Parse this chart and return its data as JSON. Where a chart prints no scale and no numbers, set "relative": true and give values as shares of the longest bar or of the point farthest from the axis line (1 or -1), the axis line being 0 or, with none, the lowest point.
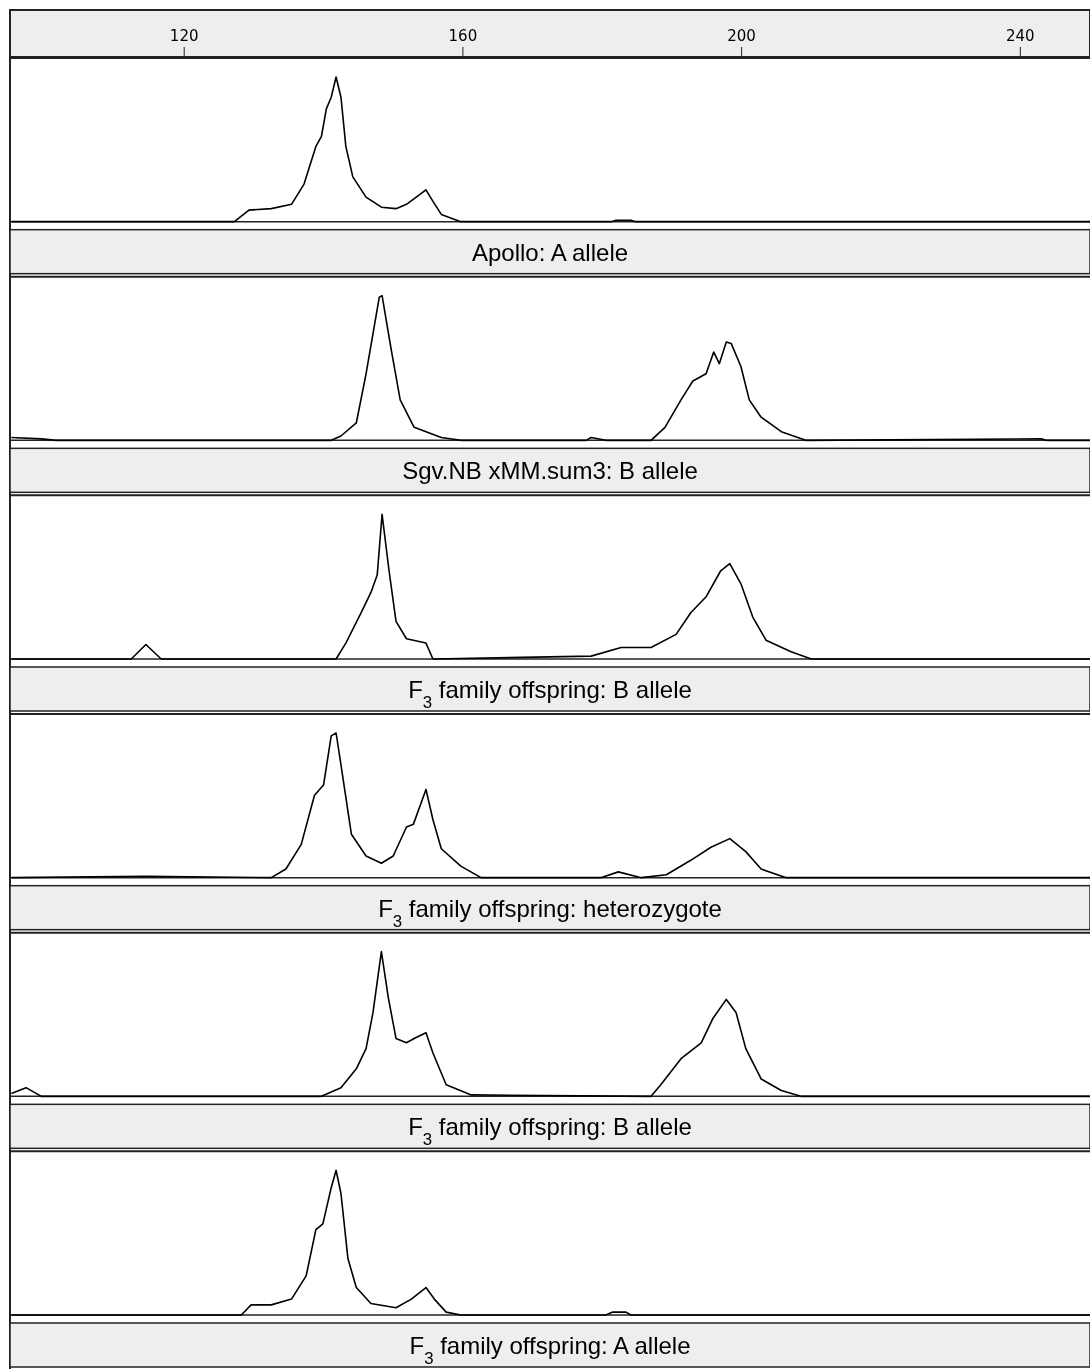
{
  "chart_data": [
    {
      "type": "line",
      "relative": true,
      "title": "Apollo: A allele",
      "xlim": [
        95,
        250
      ],
      "xticks": [
        120,
        160,
        200,
        240
      ],
      "tick_labels": "x",
      "color": "#000000",
      "x": [
        95.2,
        127.2,
        129.3,
        132.5,
        135.4,
        137.2,
        138.9,
        139.7,
        140.4,
        141.1,
        141.8,
        142.5,
        143.2,
        144.2,
        146.1,
        148.3,
        150.4,
        151.9,
        153.3,
        154.7,
        155.7,
        156.9,
        159.7,
        181.3,
        182.0,
        184.1,
        184.8,
        250
      ],
      "values": [
        0,
        0,
        0.08,
        0.09,
        0.12,
        0.26,
        0.52,
        0.59,
        0.78,
        0.86,
        1,
        0.86,
        0.52,
        0.31,
        0.17,
        0.1,
        0.09,
        0.12,
        0.17,
        0.22,
        0.14,
        0.05,
        0,
        0,
        0.01,
        0.01,
        0,
        0
      ]
    },
    {
      "type": "line",
      "relative": true,
      "title": "Sgv.NB xMM.sum3: B allele",
      "xlim": [
        95,
        250
      ],
      "tick_labels": false,
      "color": "#000000",
      "x": [
        95.2,
        99.5,
        101.6,
        141.1,
        142.5,
        144.7,
        146.1,
        148.0,
        148.4,
        149.7,
        151.0,
        153.0,
        156.9,
        159.7,
        177.7,
        178.4,
        180.5,
        187.0,
        189.0,
        191.3,
        193.0,
        194.9,
        196.0,
        196.8,
        197.8,
        198.5,
        199.9,
        201.1,
        202.8,
        205.7,
        209.2,
        243.0,
        243.7,
        250
      ],
      "values": [
        0.02,
        0.01,
        0,
        0,
        0.03,
        0.12,
        0.46,
        0.99,
        1,
        0.63,
        0.28,
        0.09,
        0.02,
        0,
        0,
        0.02,
        0,
        0,
        0.09,
        0.28,
        0.41,
        0.46,
        0.61,
        0.53,
        0.68,
        0.67,
        0.51,
        0.28,
        0.16,
        0.06,
        0,
        0.01,
        0,
        0
      ]
    },
    {
      "type": "line",
      "relative": true,
      "title": "F$_{3}$ family offspring: B allele",
      "xlim": [
        95,
        250
      ],
      "tick_labels": false,
      "color": "#000000",
      "x": [
        95.2,
        112.4,
        114.5,
        116.7,
        141.8,
        143.2,
        145.4,
        146.8,
        147.7,
        148.4,
        149.4,
        150.4,
        151.9,
        154.7,
        155.7,
        178.4,
        182.7,
        187.0,
        190.6,
        192.7,
        194.9,
        197.0,
        198.3,
        199.9,
        201.6,
        203.5,
        207.1,
        210.0,
        250
      ],
      "values": [
        0,
        0,
        0.1,
        0,
        0,
        0.11,
        0.32,
        0.46,
        0.58,
        1,
        0.61,
        0.26,
        0.14,
        0.11,
        0,
        0.02,
        0.08,
        0.08,
        0.17,
        0.32,
        0.43,
        0.61,
        0.66,
        0.52,
        0.29,
        0.13,
        0.05,
        0,
        0
      ]
    },
    {
      "type": "line",
      "relative": true,
      "title": "F$_{3}$ family offspring: heterozygote",
      "xlim": [
        95,
        250
      ],
      "tick_labels": false,
      "color": "#000000",
      "x": [
        95.2,
        114.5,
        132.5,
        134.6,
        136.8,
        138.7,
        140.0,
        141.1,
        141.8,
        142.5,
        144.0,
        146.1,
        148.3,
        150.0,
        151.9,
        152.9,
        154.7,
        155.7,
        156.9,
        159.7,
        162.6,
        179.8,
        182.3,
        185.6,
        189.2,
        192.7,
        195.6,
        198.3,
        200.6,
        202.8,
        206.4,
        250
      ],
      "values": [
        0,
        0.01,
        0,
        0.06,
        0.23,
        0.57,
        0.64,
        0.98,
        1,
        0.78,
        0.3,
        0.15,
        0.1,
        0.15,
        0.35,
        0.37,
        0.61,
        0.4,
        0.2,
        0.08,
        0,
        0,
        0.04,
        0,
        0.02,
        0.12,
        0.21,
        0.27,
        0.18,
        0.06,
        0,
        0
      ]
    },
    {
      "type": "line",
      "relative": true,
      "title": "F$_{3}$ family offspring: B allele",
      "xlim": [
        95,
        250
      ],
      "tick_labels": false,
      "color": "#000000",
      "x": [
        95.2,
        97.3,
        99.5,
        139.7,
        142.5,
        144.7,
        146.1,
        147.1,
        148.3,
        149.3,
        150.4,
        151.9,
        153.0,
        154.7,
        155.7,
        157.6,
        161.2,
        187.0,
        188.4,
        191.3,
        194.2,
        195.9,
        197.8,
        199.2,
        200.6,
        202.8,
        205.7,
        208.5,
        250
      ],
      "values": [
        0.02,
        0.06,
        0,
        0,
        0.06,
        0.19,
        0.33,
        0.58,
        1,
        0.68,
        0.4,
        0.37,
        0.4,
        0.44,
        0.3,
        0.08,
        0.01,
        0,
        0.08,
        0.26,
        0.37,
        0.54,
        0.67,
        0.58,
        0.33,
        0.12,
        0.04,
        0,
        0
      ]
    },
    {
      "type": "line",
      "relative": true,
      "title": "F$_{3}$ family offspring: A allele",
      "xlim": [
        95,
        250
      ],
      "tick_labels": false,
      "color": "#000000",
      "x": [
        95.2,
        128.2,
        129.6,
        132.5,
        135.4,
        137.5,
        138.9,
        139.9,
        141.1,
        141.8,
        142.5,
        143.5,
        144.7,
        146.8,
        150.4,
        152.6,
        154.7,
        155.9,
        157.6,
        159.7,
        180.5,
        181.5,
        183.4,
        184.1,
        250
      ],
      "values": [
        0,
        0,
        0.07,
        0.07,
        0.11,
        0.27,
        0.59,
        0.63,
        0.88,
        1,
        0.84,
        0.39,
        0.19,
        0.08,
        0.05,
        0.11,
        0.19,
        0.11,
        0.02,
        0,
        0,
        0.02,
        0.02,
        0,
        0
      ]
    }
  ]
}
